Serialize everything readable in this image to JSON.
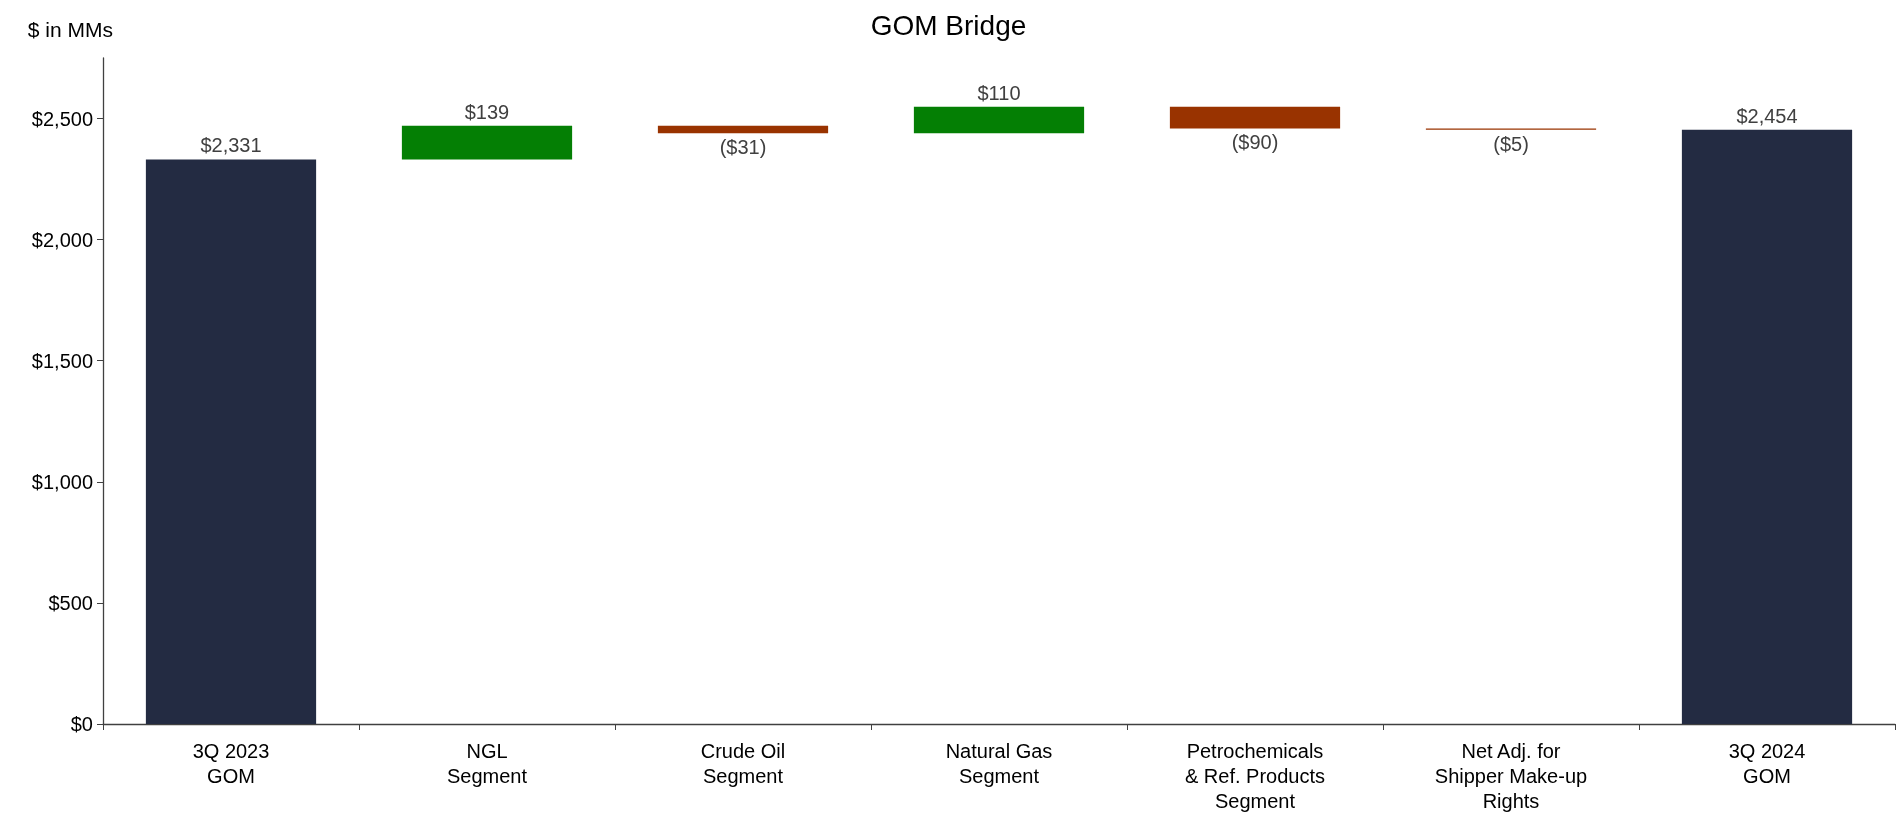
{
  "chart_data": {
    "type": "bar",
    "title": "GOM Bridge",
    "ylabel": "$ in MMs",
    "categories": [
      "3Q 2023\nGOM",
      "NGL\nSegment",
      "Crude Oil\nSegment",
      "Natural Gas\nSegment",
      "Petrochemicals\n& Ref. Products\nSegment",
      "Net Adj. for\nShipper Make-up\nRights",
      "3Q 2024\nGOM"
    ],
    "values": [
      2331,
      139,
      -31,
      110,
      -90,
      -5,
      2454
    ],
    "base": [
      0,
      2331,
      2470,
      2439,
      2549,
      2459,
      0
    ],
    "colors": [
      "#232b42",
      "#047f04",
      "#993300",
      "#047f04",
      "#993300",
      "#993300",
      "#232b42"
    ],
    "value_labels": [
      "$2,331",
      "$139",
      "($31)",
      "$110",
      "($90)",
      "($5)",
      "$2,454"
    ],
    "ylim": [
      0,
      2750
    ],
    "yticks": [
      {
        "value": 0,
        "label": "$0"
      },
      {
        "value": 500,
        "label": "$500"
      },
      {
        "value": 1000,
        "label": "$1,000"
      },
      {
        "value": 1500,
        "label": "$1,500"
      },
      {
        "value": 2000,
        "label": "$2,000"
      },
      {
        "value": 2500,
        "label": "$2,500"
      }
    ]
  }
}
